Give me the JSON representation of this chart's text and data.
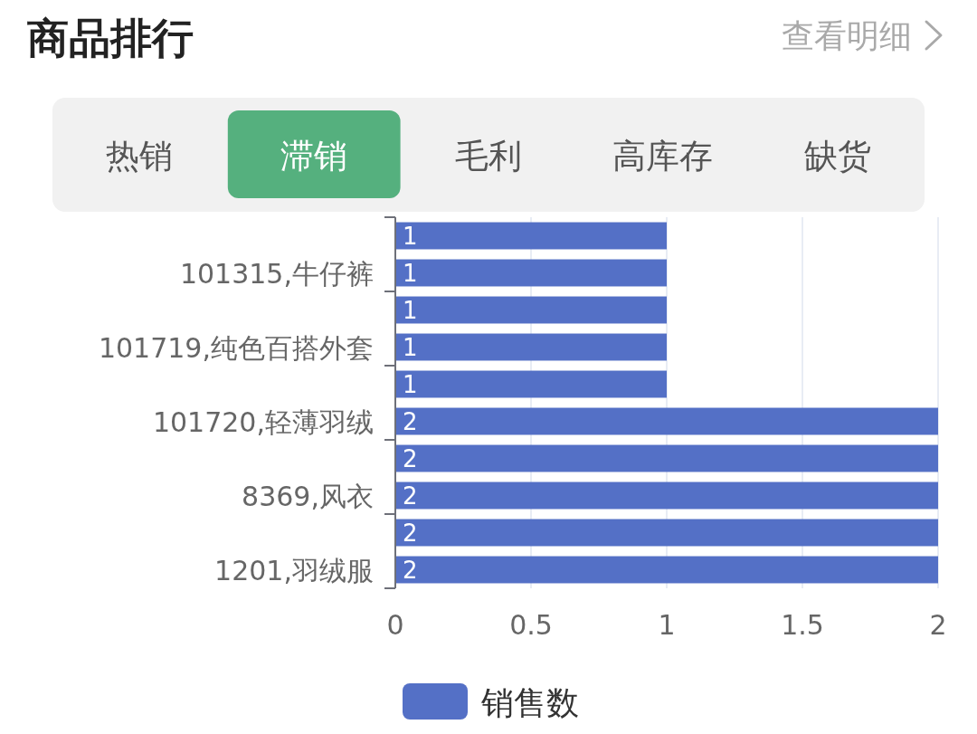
{
  "chart_data": {
    "type": "bar",
    "orientation": "horizontal",
    "title": "商品排行",
    "annotations": [
      "查看明细",
      "热销",
      "滞销",
      "毛利",
      "高库存",
      "缺货"
    ],
    "categories": [
      null,
      "101315,牛仔裤",
      null,
      "101719,纯色百搭外套",
      null,
      "101720,轻薄羽绒",
      null,
      "8369,风衣",
      null,
      "1201,羽绒服"
    ],
    "series": [
      {
        "name": "销售数",
        "color": "#5470c6",
        "values": [
          1,
          1,
          1,
          1,
          1,
          2,
          2,
          2,
          2,
          2
        ]
      }
    ],
    "xlim": [
      0,
      2
    ],
    "xticks": [
      0,
      0.5,
      1,
      1.5,
      2
    ],
    "grid": "x",
    "legend": "bottom",
    "data_labels": true
  }
}
